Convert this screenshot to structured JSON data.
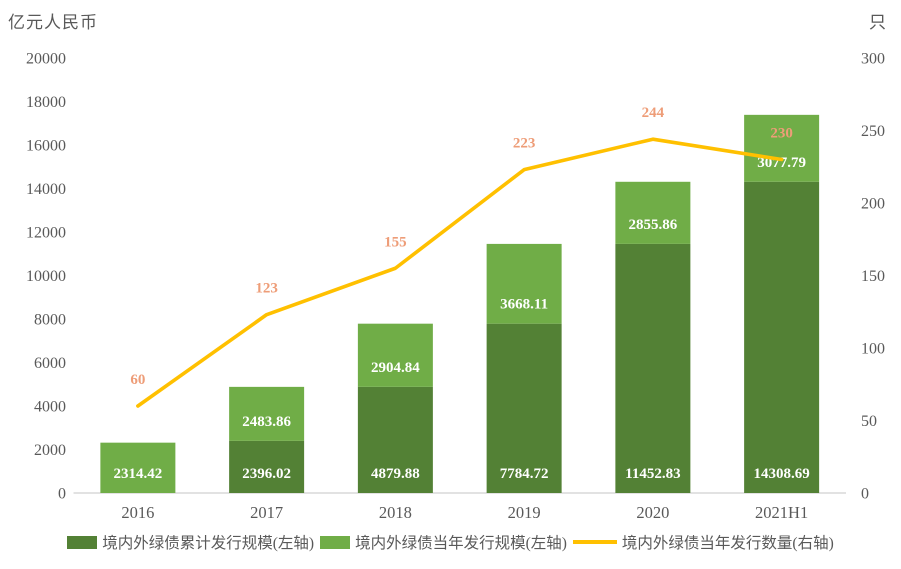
{
  "chart_data": {
    "type": "bar+line",
    "subtype": "stacked-column-with-line",
    "categories": [
      "2016",
      "2017",
      "2018",
      "2019",
      "2020",
      "2021H1"
    ],
    "bar_series": [
      {
        "name": "境内外绿债累计发行规模(左轴)",
        "axis": "left",
        "color": "#538135",
        "label_color": "#FFFFFF",
        "values": [
          0,
          2396.02,
          4879.88,
          7784.72,
          11452.83,
          14308.69
        ]
      },
      {
        "name": "境内外绿债当年发行规模(左轴)",
        "axis": "left",
        "color": "#70AD47",
        "label_color": "#FFFFFF",
        "values": [
          2314.42,
          2483.86,
          2904.84,
          3668.11,
          2855.86,
          3077.79
        ]
      }
    ],
    "line_series": [
      {
        "name": "境内外绿债当年发行数量(右轴)",
        "axis": "right",
        "color": "#FFC000",
        "label_color": "#EE9D78",
        "values": [
          60,
          123,
          155,
          223,
          244,
          230
        ]
      }
    ],
    "left_axis": {
      "title": "亿元人民币",
      "min": 0,
      "max": 20000,
      "step": 2000
    },
    "right_axis": {
      "title": "只",
      "min": 0,
      "max": 300,
      "step": 50
    },
    "grid": false,
    "legend_position": "bottom",
    "axis_line_color": "#D9D9D9",
    "background_color": "#FFFFFF"
  }
}
